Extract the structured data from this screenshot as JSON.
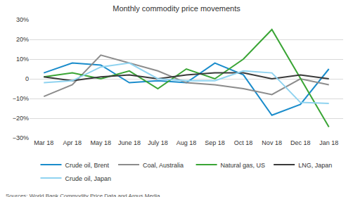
{
  "chart_data": {
    "type": "line",
    "title": "Monthly commodity price movements",
    "annotations": [
      "Sources: World Bank Commodity Price Data and Argus Media"
    ],
    "categories": [
      "Mar 18",
      "Apr 18",
      "May 18",
      "June 18",
      "July 18",
      "Aug 18",
      "Sep 18",
      "Oct 18",
      "Nov 18",
      "Dec 18",
      "Jan 18"
    ],
    "series": [
      {
        "name": "Crude oil, Brent",
        "color": "#1a8ccb",
        "values": [
          3,
          8,
          7,
          -2,
          -1,
          -2,
          8,
          2,
          -18.5,
          -13,
          5
        ]
      },
      {
        "name": "Coal, Australia",
        "color": "#8c8c8c",
        "values": [
          -9,
          -3,
          12,
          8,
          4,
          -2,
          -3,
          -5,
          -8,
          0,
          -3
        ]
      },
      {
        "name": "Natural gas, US",
        "color": "#3aa535",
        "values": [
          1,
          3,
          0,
          4,
          -5,
          5,
          0,
          10,
          25,
          0,
          -24.5
        ]
      },
      {
        "name": "LNG, Japan",
        "color": "#3a3a3a",
        "values": [
          1,
          -1,
          1,
          2,
          0,
          2,
          3,
          3,
          0,
          2,
          0
        ]
      },
      {
        "name": "Crude oil, Japan",
        "color": "#8fd3f0",
        "values": [
          -2,
          -1,
          6,
          8,
          0,
          -1,
          -1,
          4,
          3,
          -12,
          -12.5
        ]
      }
    ],
    "ylim": [
      -30,
      30
    ],
    "yticks": [
      {
        "value": -30,
        "label": "−30%"
      },
      {
        "value": -20,
        "label": "−20%"
      },
      {
        "value": -10,
        "label": "−10%"
      },
      {
        "value": 0,
        "label": "0"
      },
      {
        "value": 10,
        "label": "10%"
      },
      {
        "value": 20,
        "label": "20%"
      },
      {
        "value": 30,
        "label": "30%"
      }
    ],
    "grid": true,
    "legend": "bottom"
  }
}
